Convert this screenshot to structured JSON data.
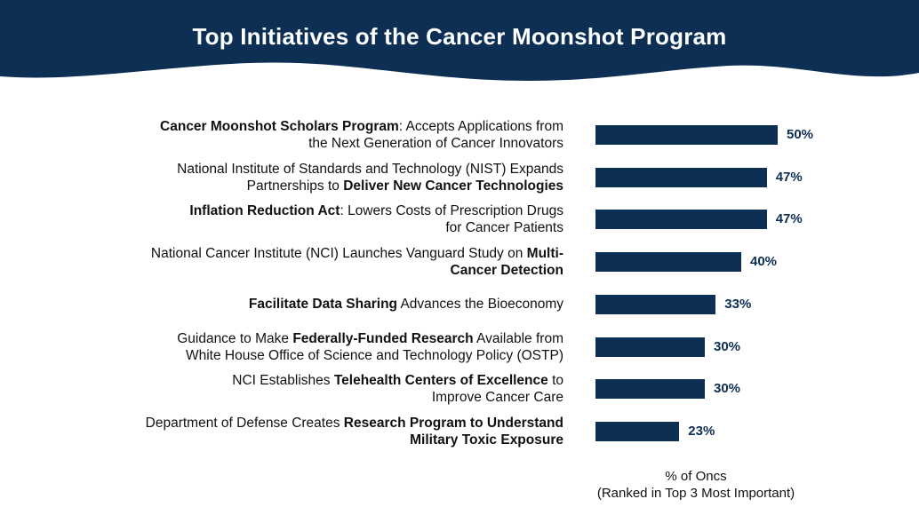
{
  "chart_data": {
    "type": "bar",
    "orientation": "horizontal",
    "title": "Top Initiatives of the Cancer Moonshot Program",
    "xlabel_line1": "% of Oncs",
    "xlabel_line2": "(Ranked in Top 3 Most Important)",
    "xlim": [
      0,
      100
    ],
    "value_suffix": "%",
    "bar_color": "#0d2f54",
    "header_color": "#0d2f54",
    "categories": [
      "Cancer Moonshot Scholars Program: Accepts Applications from the Next Generation of Cancer Innovators",
      "National Institute of Standards and Technology (NIST) Expands Partnerships to Deliver New Cancer Technologies",
      "Inflation Reduction Act: Lowers Costs of Prescription Drugs for Cancer Patients",
      "National Cancer Institute (NCI) Launches Vanguard Study on Multi-Cancer Detection",
      "Facilitate Data Sharing Advances the Bioeconomy",
      "Guidance to Make Federally-Funded Research Available from White House Office of Science and Technology Policy (OSTP)",
      "NCI Establishes Telehealth Centers of Excellence to Improve Cancer Care",
      "Department of Defense Creates Research Program to Understand Military Toxic Exposure"
    ],
    "values": [
      50,
      47,
      47,
      40,
      33,
      30,
      30,
      23
    ],
    "value_labels": [
      "50%",
      "47%",
      "47%",
      "40%",
      "33%",
      "30%",
      "30%",
      "23%"
    ],
    "label_lines": [
      [
        [
          {
            "t": "Cancer Moonshot Scholars Program",
            "b": true
          },
          {
            "t": ": Accepts Applications from",
            "b": false
          }
        ],
        [
          {
            "t": "the Next Generation of Cancer Innovators",
            "b": false
          }
        ]
      ],
      [
        [
          {
            "t": "National Institute of Standards and Technology (NIST) Expands",
            "b": false
          }
        ],
        [
          {
            "t": "Partnerships to ",
            "b": false
          },
          {
            "t": "Deliver New Cancer Technologies",
            "b": true
          }
        ]
      ],
      [
        [
          {
            "t": "Inflation Reduction Act",
            "b": true
          },
          {
            "t": ": Lowers Costs of Prescription Drugs",
            "b": false
          }
        ],
        [
          {
            "t": "for Cancer Patients",
            "b": false
          }
        ]
      ],
      [
        [
          {
            "t": "National Cancer Institute (NCI) Launches Vanguard Study on ",
            "b": false
          },
          {
            "t": "Multi-",
            "b": true
          }
        ],
        [
          {
            "t": "Cancer Detection",
            "b": true
          }
        ]
      ],
      [
        [
          {
            "t": "Facilitate Data Sharing",
            "b": true
          },
          {
            "t": " Advances the Bioeconomy",
            "b": false
          }
        ]
      ],
      [
        [
          {
            "t": "Guidance to Make ",
            "b": false
          },
          {
            "t": "Federally-Funded Research",
            "b": true
          },
          {
            "t": " Available from",
            "b": false
          }
        ],
        [
          {
            "t": "White House Office of Science and Technology Policy (OSTP)",
            "b": false
          }
        ]
      ],
      [
        [
          {
            "t": "NCI Establishes ",
            "b": false
          },
          {
            "t": "Telehealth Centers of Excellence",
            "b": true
          },
          {
            "t": " to",
            "b": false
          }
        ],
        [
          {
            "t": "Improve Cancer Care",
            "b": false
          }
        ]
      ],
      [
        [
          {
            "t": "Department of Defense Creates ",
            "b": false
          },
          {
            "t": "Research Program to Understand",
            "b": true
          }
        ],
        [
          {
            "t": "Military Toxic Exposure",
            "b": true
          }
        ]
      ]
    ]
  }
}
